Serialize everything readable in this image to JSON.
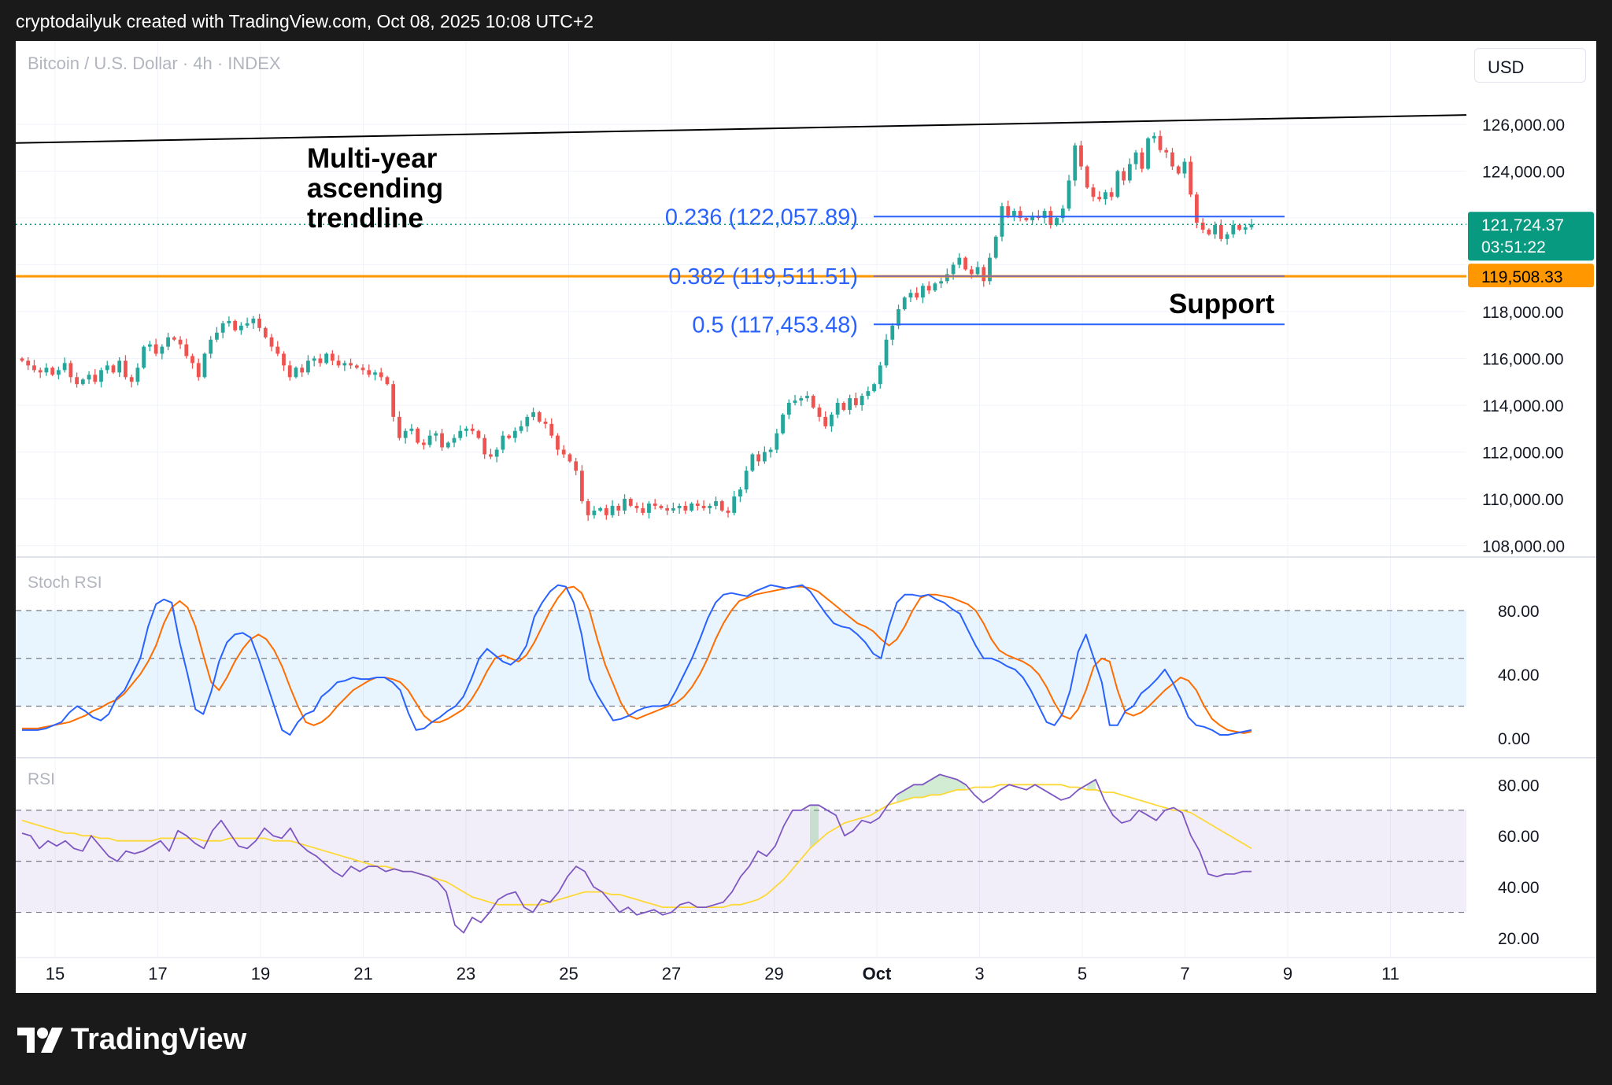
{
  "header": {
    "text": "cryptodailyuk created with TradingView.com, Oct 08, 2025 10:08 UTC+2"
  },
  "symbol": {
    "title": "Bitcoin / U.S. Dollar · 4h · INDEX"
  },
  "currency_button": "USD",
  "footer": {
    "brand": "TradingView"
  },
  "annotations": {
    "trendline_label": [
      "Multi-year",
      "ascending",
      "trendline"
    ],
    "support_label": "Support",
    "fib_labels": [
      "0.236 (122,057.89)",
      "0.382 (119,511.51)",
      "0.5 (117,453.48)"
    ]
  },
  "colors": {
    "up_candle": "#26a69a",
    "down_candle": "#ef5350",
    "fib_line": "#2962ff",
    "support_line": "#ff9800",
    "stoch_k": "#2962ff",
    "stoch_d": "#ff6d00",
    "rsi_line": "#7e57c2",
    "rsi_ma": "#fdd835",
    "price_label_bg": "#089981"
  },
  "chart_data": [
    {
      "type": "candlestick",
      "title": "Bitcoin / U.S. Dollar · 4h · INDEX",
      "x_ticks": [
        "15",
        "17",
        "19",
        "21",
        "23",
        "25",
        "27",
        "29",
        "Oct",
        "3",
        "5",
        "7",
        "9",
        "11"
      ],
      "y_ticks": [
        "126,000.00",
        "124,000.00",
        "122,000.00",
        "120,000.00",
        "118,000.00",
        "116,000.00",
        "114,000.00",
        "112,000.00",
        "110,000.00",
        "108,000.00"
      ],
      "ylim": [
        108000,
        127000
      ],
      "close_series": [
        115900,
        115700,
        115500,
        115400,
        115600,
        115300,
        115500,
        115800,
        115200,
        114900,
        115100,
        115300,
        115000,
        115500,
        115700,
        115400,
        115900,
        115200,
        115000,
        115600,
        116500,
        116600,
        116200,
        116500,
        116900,
        116800,
        116600,
        116100,
        115800,
        115200,
        116200,
        116800,
        117100,
        117500,
        117600,
        117200,
        117400,
        117500,
        117700,
        117300,
        116900,
        116500,
        116200,
        115700,
        115200,
        115600,
        115400,
        115900,
        116000,
        115800,
        116200,
        115900,
        115700,
        115800,
        115700,
        115600,
        115500,
        115300,
        115400,
        115200,
        114900,
        113500,
        112600,
        112900,
        113000,
        112400,
        112300,
        112700,
        112800,
        112200,
        112400,
        112600,
        112900,
        113000,
        112900,
        112600,
        111900,
        111800,
        112100,
        112700,
        112600,
        112900,
        113100,
        113500,
        113700,
        113300,
        113200,
        112700,
        112100,
        111900,
        111600,
        111200,
        109900,
        109300,
        109500,
        109600,
        109300,
        109700,
        109500,
        110000,
        109700,
        109600,
        109400,
        109800,
        109700,
        109600,
        109500,
        109600,
        109700,
        109500,
        109800,
        109700,
        109600,
        109700,
        109900,
        109500,
        109400,
        110100,
        110400,
        111200,
        111900,
        111600,
        112000,
        112100,
        112800,
        113600,
        114100,
        114200,
        114300,
        114400,
        113900,
        113500,
        113100,
        113600,
        114100,
        113800,
        114300,
        114000,
        114400,
        114600,
        114900,
        115700,
        116800,
        117400,
        118100,
        118600,
        118800,
        118600,
        119100,
        118900,
        119200,
        119300,
        119600,
        120000,
        120300,
        119800,
        119600,
        119900,
        119300,
        120300,
        121200,
        122500,
        122100,
        122300,
        122000,
        121900,
        122100,
        122000,
        122300,
        121700,
        122000,
        122400,
        123600,
        125100,
        124200,
        123300,
        122900,
        122800,
        123100,
        122900,
        124000,
        123600,
        124300,
        124800,
        124100,
        125400,
        125500,
        124900,
        124800,
        124200,
        123900,
        124400,
        123000,
        121800,
        121500,
        121300,
        121700,
        121100,
        121300,
        121700,
        121500,
        121600,
        121724
      ],
      "current_price": "121,724.37",
      "countdown": "03:51:22",
      "support_price": "119,508.33",
      "trendline": {
        "start": [
          0,
          125200
        ],
        "end": [
          1,
          126400
        ]
      },
      "fib_levels": [
        122057.89,
        119511.51,
        117453.48
      ]
    },
    {
      "type": "line",
      "title": "Stoch RSI",
      "y_ticks": [
        "80.00",
        "40.00",
        "0.00"
      ],
      "ylim": [
        0,
        100
      ],
      "bands": [
        20,
        50,
        80
      ],
      "series": [
        {
          "key": "k",
          "values": [
            5,
            5,
            5,
            6,
            8,
            10,
            16,
            20,
            17,
            13,
            11,
            15,
            25,
            30,
            40,
            50,
            70,
            84,
            87,
            85,
            60,
            40,
            18,
            15,
            29,
            48,
            60,
            65,
            66,
            63,
            50,
            35,
            20,
            5,
            2,
            10,
            15,
            17,
            26,
            30,
            35,
            36,
            38,
            37,
            37,
            38,
            38,
            35,
            30,
            16,
            5,
            6,
            10,
            13,
            17,
            20,
            26,
            37,
            50,
            56,
            52,
            48,
            46,
            50,
            58,
            76,
            85,
            92,
            96,
            95,
            85,
            65,
            37,
            27,
            19,
            11,
            12,
            14,
            17,
            19,
            20,
            20,
            21,
            30,
            40,
            50,
            62,
            75,
            85,
            90,
            91,
            90,
            89,
            92,
            94,
            96,
            95,
            94,
            95,
            96,
            92,
            85,
            78,
            72,
            70,
            69,
            65,
            60,
            53,
            50,
            70,
            85,
            90,
            90,
            89,
            90,
            87,
            85,
            81,
            78,
            68,
            58,
            50,
            50,
            48,
            45,
            43,
            38,
            30,
            20,
            10,
            8,
            15,
            30,
            54,
            65,
            50,
            35,
            8,
            8,
            17,
            20,
            28,
            32,
            37,
            43,
            35,
            25,
            13,
            8,
            7,
            5,
            2,
            2,
            3,
            4,
            5
          ]
        },
        {
          "key": "d",
          "values": [
            6,
            6,
            6,
            7,
            8,
            9,
            10,
            12,
            14,
            17,
            19,
            22,
            24,
            28,
            34,
            40,
            48,
            58,
            72,
            82,
            86,
            82,
            70,
            52,
            35,
            30,
            38,
            48,
            56,
            62,
            65,
            62,
            55,
            45,
            32,
            20,
            10,
            8,
            10,
            14,
            20,
            25,
            30,
            33,
            36,
            38,
            38,
            37,
            35,
            30,
            22,
            14,
            10,
            10,
            12,
            15,
            18,
            24,
            32,
            42,
            50,
            52,
            50,
            48,
            52,
            60,
            70,
            80,
            88,
            94,
            95,
            91,
            80,
            62,
            46,
            34,
            22,
            14,
            12,
            14,
            16,
            18,
            20,
            22,
            26,
            32,
            40,
            50,
            62,
            72,
            80,
            86,
            88,
            90,
            91,
            92,
            93,
            94,
            95,
            95,
            94,
            92,
            88,
            84,
            80,
            76,
            72,
            70,
            67,
            62,
            58,
            62,
            70,
            80,
            88,
            90,
            90,
            89,
            88,
            86,
            84,
            80,
            72,
            62,
            55,
            52,
            50,
            48,
            45,
            40,
            32,
            22,
            14,
            12,
            18,
            30,
            45,
            50,
            48,
            30,
            16,
            14,
            16,
            20,
            25,
            30,
            34,
            38,
            36,
            30,
            20,
            12,
            8,
            5,
            4,
            3,
            4
          ]
        }
      ]
    },
    {
      "type": "line",
      "title": "RSI",
      "y_ticks": [
        "80.00",
        "60.00",
        "40.00",
        "20.00"
      ],
      "ylim": [
        15,
        90
      ],
      "bands": [
        30,
        50,
        70
      ],
      "series": [
        {
          "key": "rsi",
          "values": [
            61,
            60,
            55,
            58,
            56,
            58,
            55,
            54,
            60,
            56,
            52,
            50,
            54,
            53,
            54,
            56,
            58,
            54,
            62,
            60,
            57,
            55,
            62,
            66,
            61,
            56,
            55,
            58,
            63,
            60,
            59,
            63,
            57,
            54,
            52,
            49,
            46,
            44,
            48,
            46,
            48,
            48,
            46,
            47,
            46,
            46,
            45,
            44,
            42,
            38,
            25,
            22,
            28,
            26,
            30,
            35,
            37,
            38,
            32,
            30,
            35,
            34,
            38,
            44,
            48,
            46,
            40,
            38,
            34,
            30,
            32,
            29,
            30,
            31,
            29,
            30,
            33,
            34,
            32,
            32,
            33,
            34,
            38,
            44,
            48,
            54,
            52,
            56,
            64,
            70,
            70,
            72,
            72,
            70,
            68,
            60,
            62,
            66,
            65,
            67,
            72,
            76,
            78,
            80,
            80,
            82,
            84,
            83,
            82,
            80,
            76,
            73,
            75,
            78,
            80,
            79,
            78,
            80,
            78,
            76,
            74,
            75,
            78,
            80,
            82,
            74,
            68,
            65,
            66,
            70,
            68,
            66,
            70,
            71,
            69,
            60,
            54,
            45,
            44,
            45,
            45,
            46,
            46
          ]
        },
        {
          "key": "rsi_ma",
          "values": [
            66,
            65,
            64,
            63,
            62,
            61,
            61,
            60,
            60,
            59,
            59,
            58,
            58,
            58,
            58,
            58,
            59,
            59,
            59,
            59,
            59,
            58,
            58,
            58,
            59,
            59,
            59,
            59,
            59,
            58,
            58,
            58,
            57,
            56,
            55,
            54,
            53,
            52,
            51,
            50,
            49,
            48,
            48,
            47,
            46,
            46,
            45,
            44,
            43,
            42,
            40,
            38,
            36,
            35,
            34,
            33,
            33,
            33,
            33,
            33,
            33,
            34,
            35,
            36,
            37,
            38,
            38,
            38,
            37,
            37,
            36,
            35,
            34,
            33,
            32,
            32,
            32,
            32,
            32,
            32,
            32,
            32,
            33,
            33,
            34,
            35,
            37,
            40,
            43,
            47,
            51,
            55,
            58,
            61,
            63,
            65,
            66,
            67,
            68,
            70,
            72,
            73,
            74,
            75,
            75,
            76,
            76,
            77,
            78,
            78,
            79,
            79,
            79,
            80,
            80,
            80,
            80,
            80,
            80,
            80,
            80,
            79,
            79,
            78,
            78,
            77,
            77,
            76,
            75,
            74,
            73,
            72,
            71,
            70,
            70,
            69,
            67,
            65,
            63,
            61,
            59,
            57,
            55
          ]
        }
      ]
    }
  ]
}
